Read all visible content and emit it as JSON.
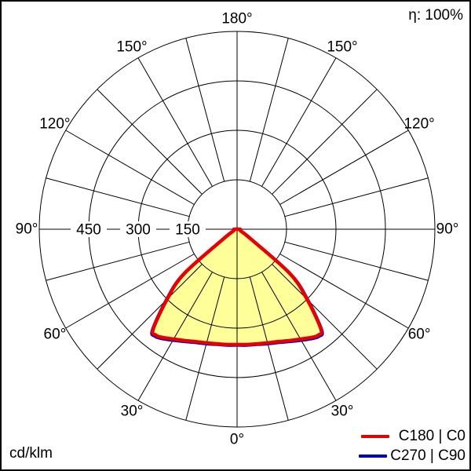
{
  "frame": {
    "eta_label": "η: 100%",
    "unit_label": "cd/klm"
  },
  "legend": [
    {
      "label": "C180 | C0",
      "color": "#e60000"
    },
    {
      "label": "C270 | C90",
      "color": "#0000cc"
    }
  ],
  "chart_data": {
    "type": "polar-intensity-distribution",
    "unit": "cd/klm",
    "efficiency": "η: 100%",
    "orientation": "0° at bottom, 180° at top, mirrored left/right",
    "angle_label_step_deg": 30,
    "grid_step_deg": 15,
    "angle_labels": [
      "0°",
      "30°",
      "60°",
      "90°",
      "120°",
      "150°",
      "180°"
    ],
    "radial_ticks": [
      {
        "value": 150,
        "label": "150"
      },
      {
        "value": 300,
        "label": "300"
      },
      {
        "value": 450,
        "label": "450"
      },
      {
        "value": 600,
        "label": ""
      }
    ],
    "r_max": 600,
    "center": {
      "x": 300,
      "y": 290
    },
    "outer_radius_px": 252,
    "angle_label_radius_px": 268,
    "fill_color": "#ffff99",
    "grid_color": "#000000",
    "gamma_deg": [
      0,
      5,
      10,
      15,
      20,
      25,
      30,
      35,
      37.5,
      40,
      45,
      50,
      55,
      60,
      65,
      70,
      75,
      80,
      85,
      90
    ],
    "series": [
      {
        "name": "C180 | C0",
        "color": "#e60000",
        "values": [
          350,
          351,
          353,
          357,
          363,
          373,
          385,
          400,
          405,
          396,
          300,
          209,
          48,
          20,
          13,
          10,
          9,
          8,
          8,
          8
        ]
      },
      {
        "name": "C270 | C90",
        "color": "#0000cc",
        "values": [
          352,
          353,
          355,
          360,
          366,
          376,
          389,
          404,
          409,
          400,
          304,
          213,
          52,
          22,
          14,
          11,
          10,
          9,
          9,
          9
        ]
      }
    ]
  }
}
